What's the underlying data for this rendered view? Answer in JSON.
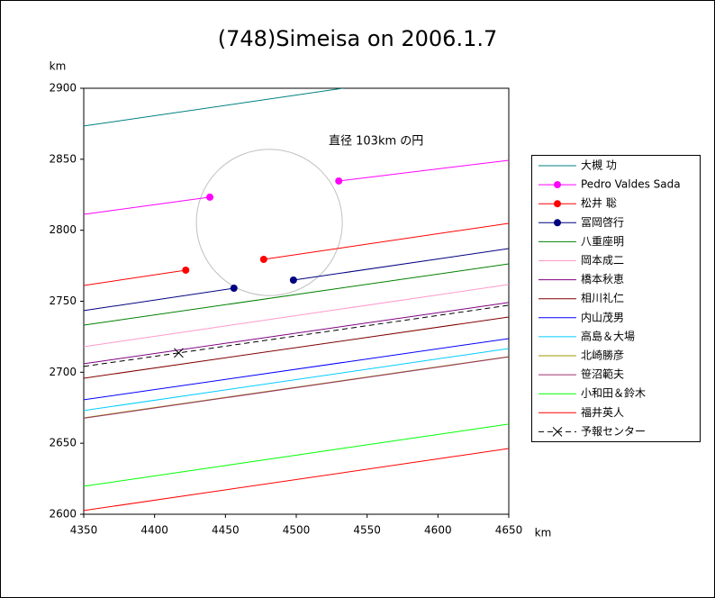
{
  "chart_data": {
    "type": "line",
    "title": "(748)Simeisa on 2006.1.7",
    "xlabel": "km",
    "ylabel": "km",
    "xlim": [
      4350,
      4650
    ],
    "ylim": [
      2600,
      2900
    ],
    "xticks": [
      4350,
      4400,
      4450,
      4500,
      4550,
      4600,
      4650
    ],
    "yticks": [
      2600,
      2650,
      2700,
      2750,
      2800,
      2850,
      2900
    ],
    "circle": {
      "x": 4481,
      "y": 2805.5,
      "diameter": 103,
      "label": "直径 103km の円",
      "color": "#c0c0c0"
    },
    "series": [
      {
        "name": "大槻 功",
        "color": "#008080",
        "marker": "none",
        "x": [
          4350,
          4533
        ],
        "values": [
          2873.4,
          2900
        ]
      },
      {
        "name": "Pedro Valdes Sada",
        "color": "#ff00ff",
        "marker": "dot",
        "x": [
          4350,
          4439,
          null,
          4530,
          4650
        ],
        "values": [
          2811.2,
          2823.3,
          null,
          2834.7,
          2849.3
        ]
      },
      {
        "name": "松井 聡",
        "color": "#ff0000",
        "marker": "dot",
        "x": [
          4350,
          4422,
          null,
          4477,
          4650
        ],
        "values": [
          2761.1,
          2771.9,
          null,
          2779.5,
          2804.9
        ]
      },
      {
        "name": "冨岡啓行",
        "color": "#000080",
        "marker": "dot",
        "x": [
          4350,
          4456,
          null,
          4498,
          4650
        ],
        "values": [
          2743.4,
          2759.2,
          null,
          2764.9,
          2787.1
        ]
      },
      {
        "name": "八重座明",
        "color": "#008000",
        "marker": "none",
        "x": [
          4350,
          4650
        ],
        "values": [
          2733.2,
          2776.3
        ]
      },
      {
        "name": "岡本成二",
        "color": "#ff99cc",
        "marker": "none",
        "x": [
          4350,
          4650
        ],
        "values": [
          2718.0,
          2761.8
        ]
      },
      {
        "name": "橋本秋恵",
        "color": "#800080",
        "marker": "none",
        "x": [
          4350,
          4650
        ],
        "values": [
          2706.0,
          2749.1
        ]
      },
      {
        "name": "相川礼仁",
        "color": "#800000",
        "marker": "none",
        "x": [
          4350,
          4650
        ],
        "values": [
          2695.8,
          2738.9
        ]
      },
      {
        "name": "内山茂男",
        "color": "#0000ff",
        "marker": "none",
        "x": [
          4350,
          4650
        ],
        "values": [
          2680.6,
          2723.7
        ]
      },
      {
        "name": "高島＆大場",
        "color": "#00ccff",
        "marker": "none",
        "x": [
          4350,
          4650
        ],
        "values": [
          2673.0,
          2716.7
        ]
      },
      {
        "name": "北崎勝彦",
        "color": "#999900",
        "marker": "none",
        "x": [
          4350,
          4650
        ],
        "values": [
          2667.9,
          2711.0
        ]
      },
      {
        "name": "笹沼範夫",
        "color": "#993366",
        "marker": "none",
        "x": [
          4350,
          4650
        ],
        "values": [
          2667.6,
          2710.8
        ]
      },
      {
        "name": "小和田＆鈴木",
        "color": "#00ff00",
        "marker": "none",
        "x": [
          4350,
          4650
        ],
        "values": [
          2619.7,
          2663.5
        ]
      },
      {
        "name": "福井英人",
        "color": "#ff0000",
        "marker": "none",
        "x": [
          4350,
          4650
        ],
        "values": [
          2602.6,
          2646.3
        ]
      },
      {
        "name": "予報センター",
        "color": "#000000",
        "marker": "x",
        "dashed": true,
        "x": [
          4350,
          4417,
          4650
        ],
        "values": [
          2704.1,
          2713.6,
          2747.2
        ]
      }
    ]
  }
}
